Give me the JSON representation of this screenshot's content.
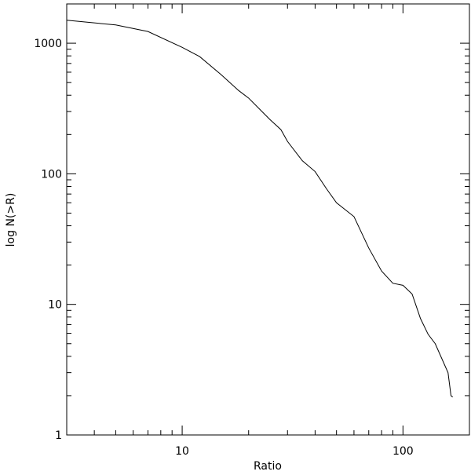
{
  "chart_data": {
    "type": "line",
    "xlabel": "Ratio",
    "ylabel": "log N(>R)",
    "log_x": true,
    "log_y": true,
    "xlim": [
      3,
      200
    ],
    "ylim": [
      1,
      2000
    ],
    "xticks": [
      10,
      100
    ],
    "yticks": [
      1,
      10,
      100,
      1000
    ],
    "xminorticks": [
      4,
      5,
      6,
      7,
      8,
      9,
      20,
      30,
      40,
      50,
      60,
      70,
      80,
      90,
      200
    ],
    "yminorticks": [
      2,
      3,
      4,
      5,
      6,
      7,
      8,
      9,
      20,
      30,
      40,
      50,
      60,
      70,
      80,
      90,
      200,
      300,
      400,
      500,
      600,
      700,
      800,
      900,
      2000
    ],
    "series": [
      {
        "color": "#000000",
        "x": [
          3,
          5,
          7,
          10,
          12,
          15,
          18,
          20,
          25,
          28,
          30,
          35,
          40,
          45,
          50,
          60,
          70,
          80,
          90,
          100,
          110,
          120,
          130,
          140,
          160,
          165,
          168
        ],
        "values": [
          1500,
          1380,
          1230,
          930,
          790,
          575,
          435,
          380,
          260,
          218,
          177,
          126,
          104,
          77,
          60,
          47,
          27,
          18,
          14.5,
          14,
          12,
          7.8,
          5.9,
          5,
          3,
          2,
          1.95
        ]
      }
    ]
  }
}
